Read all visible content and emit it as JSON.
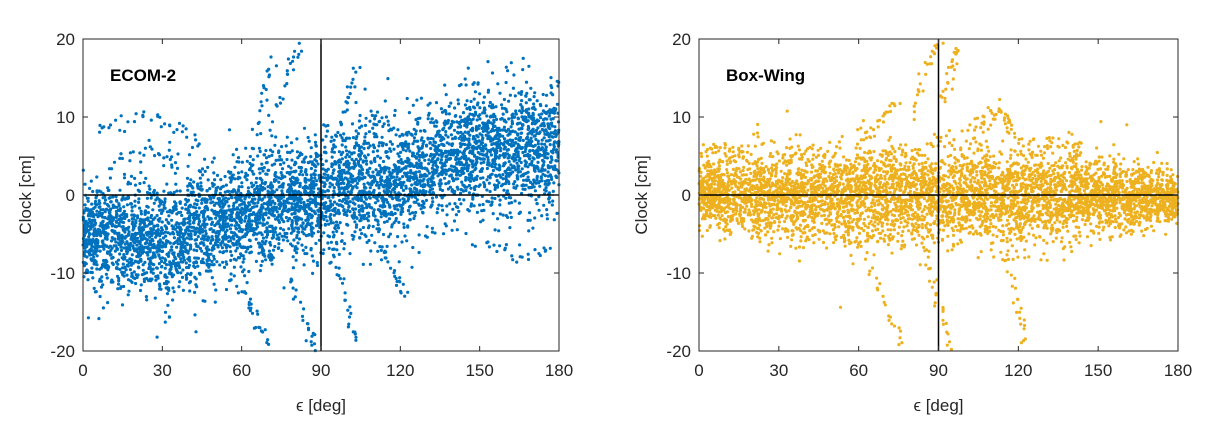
{
  "chart_data": [
    {
      "type": "scatter",
      "title": "ECOM-2",
      "xlabel": "ϵ [deg]",
      "ylabel": "Clock [cm]",
      "xlim": [
        0,
        180
      ],
      "ylim": [
        -20,
        20
      ],
      "xticks": [
        0,
        30,
        60,
        90,
        120,
        150,
        180
      ],
      "yticks": [
        20,
        10,
        0,
        -10,
        -20
      ],
      "color": "#0072BD",
      "reference_lines": {
        "x": 90,
        "y": 0
      },
      "trend": {
        "x": [
          0,
          30,
          60,
          90,
          120,
          150,
          180
        ],
        "mean": [
          -5,
          -6,
          -3,
          0,
          2,
          6,
          6
        ],
        "spread": [
          3,
          4,
          3.5,
          3.5,
          3.5,
          4,
          4
        ]
      },
      "outlier_tracks": [
        [
          [
            5,
            8
          ],
          [
            20,
            10
          ],
          [
            35,
            9
          ],
          [
            45,
            6
          ]
        ],
        [
          [
            10,
            4
          ],
          [
            25,
            6
          ],
          [
            38,
            4
          ]
        ],
        [
          [
            62,
            4
          ],
          [
            68,
            12
          ],
          [
            72,
            18
          ]
        ],
        [
          [
            70,
            8
          ],
          [
            78,
            16
          ],
          [
            82,
            19
          ]
        ],
        [
          [
            95,
            6
          ],
          [
            100,
            12
          ],
          [
            104,
            17
          ]
        ],
        [
          [
            97,
            4
          ],
          [
            110,
            10
          ],
          [
            118,
            8
          ]
        ],
        [
          [
            60,
            -12
          ],
          [
            65,
            -16
          ],
          [
            70,
            -19
          ]
        ],
        [
          [
            78,
            -10
          ],
          [
            85,
            -17
          ],
          [
            88,
            -20
          ]
        ],
        [
          [
            95,
            -6
          ],
          [
            100,
            -14
          ],
          [
            103,
            -19
          ]
        ],
        [
          [
            110,
            -6
          ],
          [
            118,
            -10
          ],
          [
            122,
            -13
          ]
        ],
        [
          [
            150,
            -6
          ],
          [
            165,
            -8
          ],
          [
            178,
            -7
          ]
        ],
        [
          [
            140,
            5
          ],
          [
            160,
            3
          ],
          [
            178,
            1
          ]
        ]
      ]
    },
    {
      "type": "scatter",
      "title": "Box-Wing",
      "xlabel": "ϵ [deg]",
      "ylabel": "Clock [cm]",
      "xlim": [
        0,
        180
      ],
      "ylim": [
        -20,
        20
      ],
      "xticks": [
        0,
        30,
        60,
        90,
        120,
        150,
        180
      ],
      "yticks": [
        20,
        10,
        0,
        -10,
        -20
      ],
      "color": "#EDB120",
      "reference_lines": {
        "x": 90,
        "y": 0
      },
      "trend": {
        "x": [
          0,
          30,
          60,
          90,
          120,
          150,
          180
        ],
        "mean": [
          0,
          0,
          0,
          0,
          0,
          0,
          -0.5
        ],
        "spread": [
          2,
          3,
          3,
          3,
          3,
          2.5,
          1.5
        ]
      },
      "outlier_tracks": [
        [
          [
            2,
            6
          ],
          [
            10,
            6
          ],
          [
            18,
            5
          ]
        ],
        [
          [
            60,
            6
          ],
          [
            68,
            10
          ],
          [
            75,
            12
          ]
        ],
        [
          [
            80,
            10
          ],
          [
            86,
            17
          ],
          [
            90,
            20
          ]
        ],
        [
          [
            92,
            12
          ],
          [
            95,
            16
          ],
          [
            98,
            19
          ]
        ],
        [
          [
            100,
            8
          ],
          [
            112,
            12
          ],
          [
            120,
            7
          ]
        ],
        [
          [
            100,
            6
          ],
          [
            110,
            10
          ],
          [
            118,
            9
          ]
        ],
        [
          [
            60,
            -6
          ],
          [
            70,
            -14
          ],
          [
            77,
            -20
          ]
        ],
        [
          [
            85,
            -8
          ],
          [
            90,
            -14
          ],
          [
            95,
            -20
          ]
        ],
        [
          [
            115,
            -6
          ],
          [
            120,
            -14
          ],
          [
            123,
            -19
          ]
        ],
        [
          [
            125,
            5
          ],
          [
            135,
            7
          ],
          [
            145,
            6
          ]
        ]
      ]
    }
  ]
}
